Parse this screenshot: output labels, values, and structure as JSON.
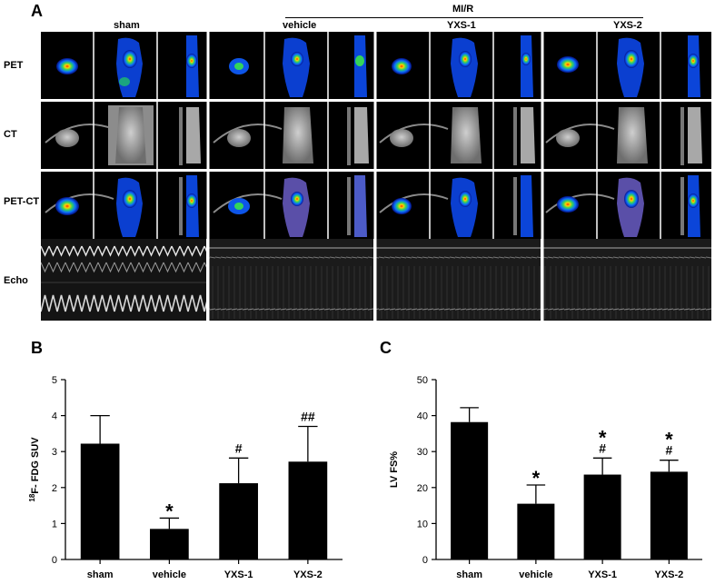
{
  "panel_a": {
    "letter": "A",
    "mir_label": "MI/R",
    "groups": [
      "sham",
      "vehicle",
      "YXS-1",
      "YXS-2"
    ],
    "rows": [
      "PET",
      "CT",
      "PET-CT",
      "Echo"
    ]
  },
  "panel_b": {
    "letter": "B"
  },
  "panel_c": {
    "letter": "C"
  },
  "chart_data": [
    {
      "type": "bar",
      "categories": [
        "sham",
        "vehicle",
        "YXS-1",
        "YXS-2"
      ],
      "values": [
        3.22,
        0.85,
        2.12,
        2.72
      ],
      "errors": [
        0.78,
        0.3,
        0.7,
        0.98
      ],
      "annotations": [
        "",
        "*",
        "#",
        "##"
      ],
      "ylabel_superscript": "18",
      "ylabel": "F- FDG SUV",
      "ylim": [
        0,
        5
      ],
      "yticks": [
        "0",
        "1",
        "2",
        "3",
        "4",
        "5"
      ],
      "bar_color": "#000000"
    },
    {
      "type": "bar",
      "categories": [
        "sham",
        "vehicle",
        "YXS-1",
        "YXS-2"
      ],
      "values": [
        38.2,
        15.5,
        23.6,
        24.4
      ],
      "errors": [
        4.0,
        5.2,
        4.6,
        3.2
      ],
      "annotations": [
        "",
        "*",
        "*\n#",
        "*\n#"
      ],
      "ylabel": "LV FS%",
      "ylim": [
        0,
        50
      ],
      "yticks": [
        "0",
        "10",
        "20",
        "30",
        "40",
        "50"
      ],
      "bar_color": "#000000"
    }
  ]
}
